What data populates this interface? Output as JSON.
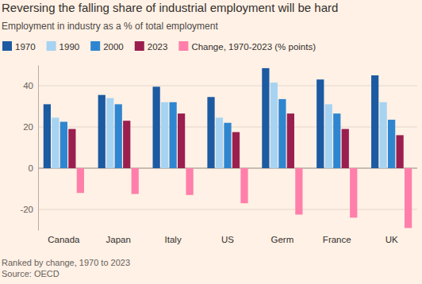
{
  "chart_data": {
    "type": "bar",
    "title": "Reversing the falling share of industrial employment will be hard",
    "subtitle": "Employment in industry as a % of total employment",
    "categories": [
      "Canada",
      "Japan",
      "Italy",
      "US",
      "Germ",
      "France",
      "UK"
    ],
    "series": [
      {
        "name": "1970",
        "color": "#1c5aa2",
        "values": [
          31,
          35.5,
          39.5,
          34.5,
          48.5,
          43,
          45
        ]
      },
      {
        "name": "1990",
        "color": "#a7d3f2",
        "values": [
          24.5,
          34,
          32,
          24.5,
          41.5,
          31,
          32
        ]
      },
      {
        "name": "2000",
        "color": "#2f86d0",
        "values": [
          22.5,
          31,
          32,
          22,
          33.5,
          26.5,
          23.5
        ]
      },
      {
        "name": "2023",
        "color": "#9a1f4f",
        "values": [
          19,
          23,
          26.5,
          17.5,
          26.5,
          19,
          16
        ]
      },
      {
        "name": "Change, 1970-2023 (% points)",
        "color": "#ff7faa",
        "values": [
          -12,
          -12.5,
          -13,
          -17,
          -22.5,
          -24,
          -29
        ]
      }
    ],
    "ylim": [
      -30,
      50
    ],
    "yticks": [
      -20,
      0,
      20,
      40
    ],
    "grid": true,
    "legend": "top",
    "annotations": [
      "Ranked by change, 1970 to 2023",
      "Source: OECD"
    ]
  }
}
